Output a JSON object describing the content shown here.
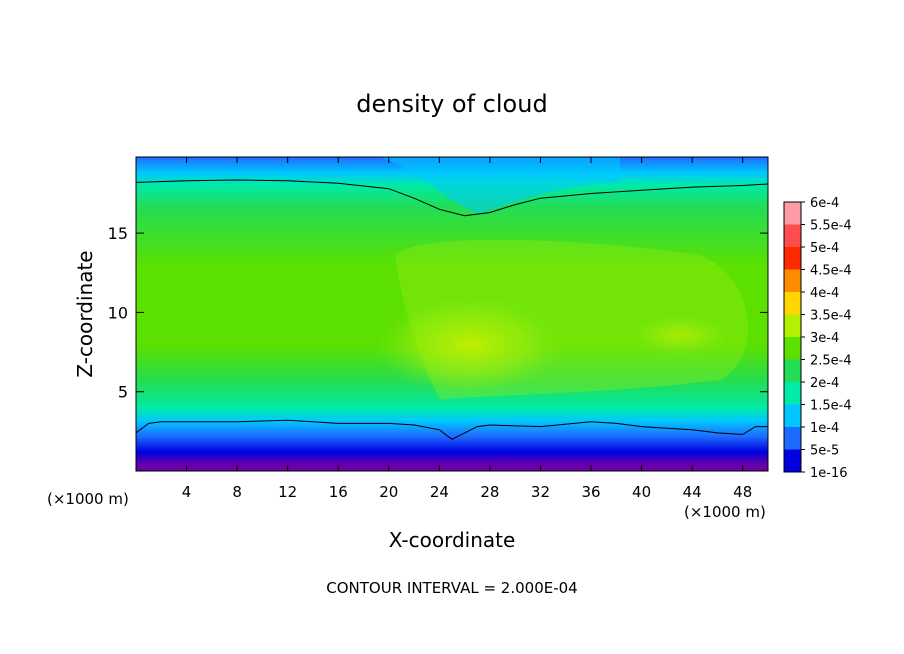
{
  "chart_data": {
    "type": "heatmap",
    "title": "density of cloud",
    "xlabel": "X-coordinate",
    "ylabel": "Z-coordinate",
    "x_unit_left": "(×1000 m)",
    "x_unit_right": "(×1000 m)",
    "footer": "CONTOUR INTERVAL = 2.000E-04",
    "xlim": [
      0,
      50
    ],
    "ylim": [
      0,
      19.8
    ],
    "xticks": [
      4,
      8,
      12,
      16,
      20,
      24,
      28,
      32,
      36,
      40,
      44,
      48
    ],
    "yticks": [
      5,
      10,
      15
    ],
    "grid": false,
    "colorbar": {
      "labels": [
        "6e-4",
        "5.5e-4",
        "5e-4",
        "4.5e-4",
        "4e-4",
        "3.5e-4",
        "3e-4",
        "2.5e-4",
        "2e-4",
        "1.5e-4",
        "1e-4",
        "5e-5",
        "1e-16"
      ],
      "colors": [
        "#ff9aa8",
        "#ff4d4d",
        "#ff2a00",
        "#ff8c00",
        "#ffd700",
        "#b4f000",
        "#5ce000",
        "#22dd55",
        "#00eaa8",
        "#00c8ff",
        "#1e6bff",
        "#0000e0",
        "#6a00a8"
      ]
    },
    "cloud_top_contour": {
      "x": [
        0,
        4,
        8,
        12,
        16,
        20,
        22,
        24,
        26,
        28,
        30,
        32,
        36,
        40,
        44,
        48,
        50
      ],
      "z": [
        18.2,
        18.3,
        18.35,
        18.3,
        18.15,
        17.8,
        17.2,
        16.5,
        16.1,
        16.3,
        16.8,
        17.2,
        17.5,
        17.7,
        17.9,
        18.0,
        18.1
      ]
    },
    "cloud_base_contour": {
      "x": [
        0,
        1,
        2,
        4,
        8,
        12,
        14,
        16,
        20,
        22,
        24,
        25,
        26,
        27,
        28,
        32,
        36,
        38,
        40,
        42,
        44,
        46,
        48,
        49,
        50
      ],
      "z": [
        2.4,
        3.0,
        3.1,
        3.1,
        3.1,
        3.2,
        3.1,
        3.0,
        3.0,
        2.9,
        2.6,
        2.0,
        2.4,
        2.8,
        2.9,
        2.8,
        3.1,
        3.0,
        2.8,
        2.7,
        2.6,
        2.4,
        2.3,
        2.8,
        2.8
      ]
    }
  }
}
